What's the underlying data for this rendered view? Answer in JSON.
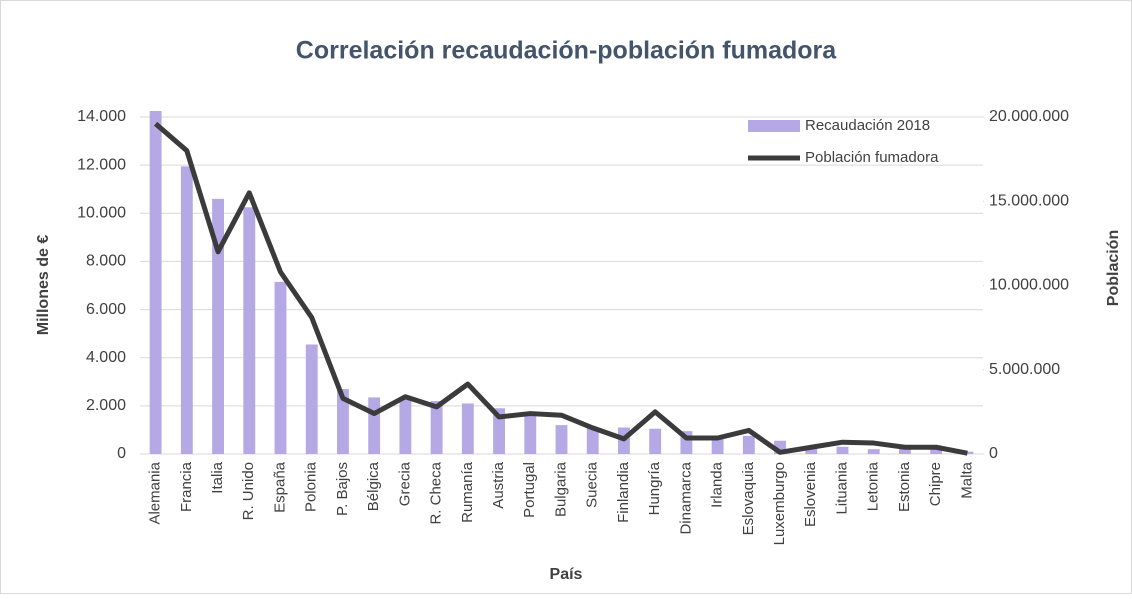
{
  "chart_data": {
    "type": "bar_line",
    "title": "Correlación recaudación-población fumadora",
    "x_label": "País",
    "y_label": "Millones de €",
    "y2_label": "Población",
    "categories": [
      "Alemania",
      "Francia",
      "Italia",
      "R. Unido",
      "España",
      "Polonia",
      "P. Bajos",
      "Bélgica",
      "Grecia",
      "R. Checa",
      "Rumanía",
      "Austria",
      "Portugal",
      "Bulgaria",
      "Suecia",
      "Finlandia",
      "Hungría",
      "Dinamarca",
      "Irlanda",
      "Eslovaquia",
      "Luxemburgo",
      "Eslovenia",
      "Lituania",
      "Letonia",
      "Estonia",
      "Chipre",
      "Malta"
    ],
    "series": [
      {
        "name": "Recaudación 2018",
        "type": "bar",
        "color": "#b4a9e4",
        "values": [
          14250,
          11950,
          10600,
          10250,
          7150,
          4550,
          2700,
          2350,
          2300,
          2200,
          2100,
          1900,
          1650,
          1200,
          1100,
          1100,
          1050,
          950,
          700,
          750,
          550,
          250,
          300,
          200,
          250,
          200,
          100
        ]
      },
      {
        "name": "Población fumadora",
        "type": "line",
        "axis": "y2",
        "color": "#3b3b3b",
        "values": [
          19600000,
          18000000,
          12000000,
          15500000,
          10800000,
          8100000,
          3300000,
          2400000,
          3400000,
          2800000,
          4150000,
          2200000,
          2400000,
          2300000,
          1550000,
          900000,
          2500000,
          950000,
          950000,
          1400000,
          100000,
          400000,
          700000,
          650000,
          400000,
          400000,
          50000
        ]
      }
    ],
    "ylim": [
      0,
      14000
    ],
    "yticks": [
      0,
      {
        "value": 2000,
        "label": "2.000"
      },
      {
        "value": 4000,
        "label": "4.000"
      },
      {
        "value": 6000,
        "label": "6.000"
      },
      {
        "value": 8000,
        "label": "8.000"
      },
      {
        "value": 10000,
        "label": "10.000"
      },
      {
        "value": 12000,
        "label": "12.000"
      },
      {
        "value": 14000,
        "label": "14.000"
      }
    ],
    "y2lim": [
      0,
      20000000
    ],
    "y2ticks": [
      0,
      {
        "value": 5000000,
        "label": "5.000.000"
      },
      {
        "value": 10000000,
        "label": "10.000.000"
      },
      {
        "value": 15000000,
        "label": "15.000.000"
      },
      {
        "value": 20000000,
        "label": "20.000.000"
      }
    ],
    "grid": true,
    "legend": "upper right"
  }
}
